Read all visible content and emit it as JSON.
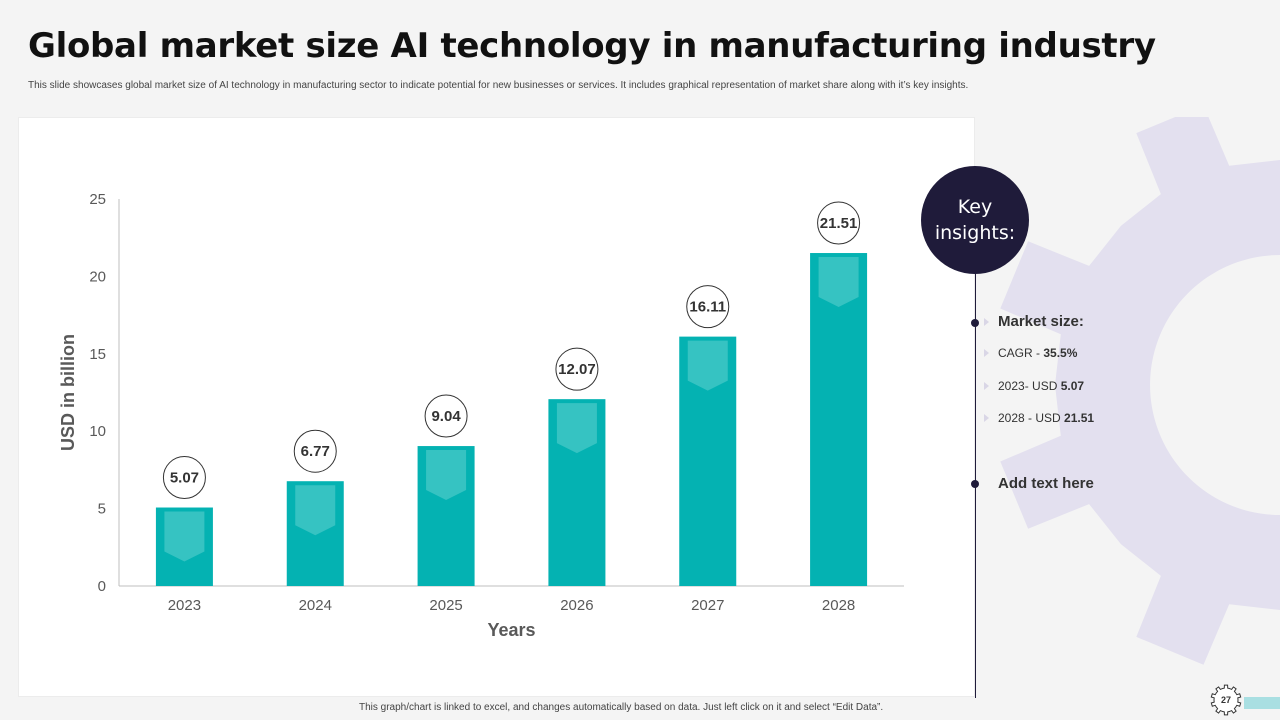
{
  "slide": {
    "title": "Global market size AI technology in manufacturing industry",
    "subtitle": "This slide showcases global market size of AI technology in manufacturing sector to indicate potential  for new businesses or services. It includes graphical representation of market share along  with it’s key insights.",
    "footer_note": "This graph/chart is linked to excel, and changes automatically based on data. Just left click on it and select “Edit Data”.",
    "page_number": "27"
  },
  "key_insights": {
    "heading": "Key insights:",
    "market_size_label": "Market size:",
    "items": [
      {
        "label": "CAGR - ",
        "value": "35.5%"
      },
      {
        "label": "2023- USD ",
        "value": "5.07"
      },
      {
        "label": "2028 - USD ",
        "value": "21.51"
      }
    ],
    "add_text": "Add text here"
  },
  "colors": {
    "bar": "#04b2b2",
    "bar_chevron": "#3fc6c4",
    "dark_navy": "#1f1b3a",
    "gear": "#e3e0ef"
  },
  "chart_data": {
    "type": "bar",
    "categories": [
      "2023",
      "2024",
      "2025",
      "2026",
      "2027",
      "2028"
    ],
    "values": [
      5.07,
      6.77,
      9.04,
      12.07,
      16.11,
      21.51
    ],
    "data_labels": [
      "5.07",
      "6.77",
      "9.04",
      "12.07",
      "16.11",
      "21.51"
    ],
    "xlabel": "Years",
    "ylabel": "USD in billion",
    "ylim": [
      0,
      25
    ],
    "yticks": [
      0,
      5,
      10,
      15,
      20,
      25
    ],
    "grid": false,
    "legend": "none"
  }
}
